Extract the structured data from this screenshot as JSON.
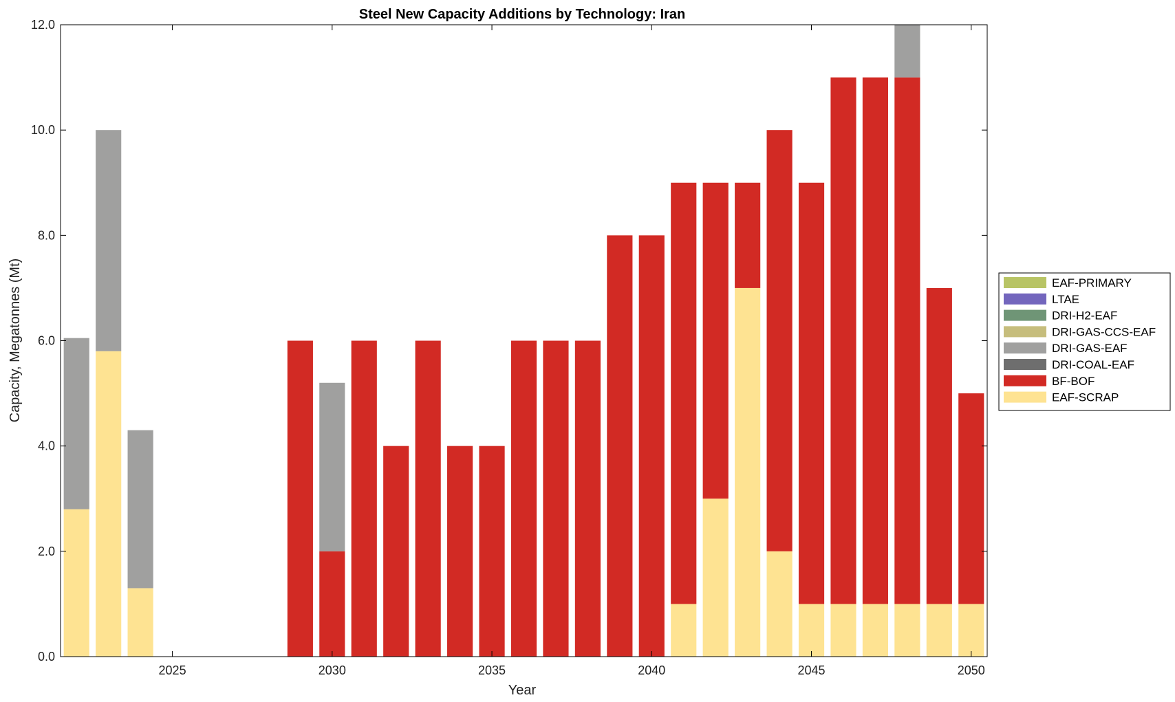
{
  "chart_data": {
    "type": "bar",
    "stacked": true,
    "title": "Steel New Capacity Additions by Technology: Iran",
    "xlabel": "Year",
    "ylabel": "Capacity, Megatonnes (Mt)",
    "xlim": [
      2022,
      2051
    ],
    "ylim": [
      0,
      12
    ],
    "xticks": [
      2025,
      2030,
      2035,
      2040,
      2045,
      2050
    ],
    "yticks": [
      "0.0",
      "2.0",
      "4.0",
      "6.0",
      "8.0",
      "10.0",
      "12.0"
    ],
    "legend_position": "right",
    "x": [
      2022,
      2023,
      2024,
      2025,
      2026,
      2027,
      2028,
      2029,
      2030,
      2031,
      2032,
      2033,
      2034,
      2035,
      2036,
      2037,
      2038,
      2039,
      2040,
      2041,
      2042,
      2043,
      2044,
      2045,
      2046,
      2047,
      2048,
      2049,
      2050
    ],
    "series": [
      {
        "name": "EAF-SCRAP",
        "color": "#fee392",
        "values": [
          2.8,
          5.8,
          1.3,
          0,
          0,
          0,
          0,
          0,
          0,
          0,
          0,
          0,
          0,
          0,
          0,
          0,
          0,
          0,
          0,
          1,
          3,
          7,
          2,
          1,
          1,
          1,
          1,
          1,
          1
        ]
      },
      {
        "name": "BF-BOF",
        "color": "#d22a24",
        "values": [
          0,
          0,
          0,
          0,
          0,
          0,
          0,
          6,
          2,
          6,
          4,
          6,
          4,
          4,
          6,
          6,
          6,
          8,
          8,
          8,
          6,
          2,
          8,
          8,
          10,
          10,
          10,
          6,
          4
        ]
      },
      {
        "name": "DRI-COAL-EAF",
        "color": "#6e6e6e",
        "values": [
          0,
          0,
          0,
          0,
          0,
          0,
          0,
          0,
          0,
          0,
          0,
          0,
          0,
          0,
          0,
          0,
          0,
          0,
          0,
          0,
          0,
          0,
          0,
          0,
          0,
          0,
          0,
          0,
          0
        ]
      },
      {
        "name": "DRI-GAS-EAF",
        "color": "#a0a09f",
        "values": [
          3.25,
          4.2,
          3.0,
          0,
          0,
          0,
          0,
          0,
          3.2,
          0,
          0,
          0,
          0,
          0,
          0,
          0,
          0,
          0,
          0,
          0,
          0,
          0,
          0,
          0,
          0,
          0,
          1.0,
          0,
          0
        ]
      },
      {
        "name": "DRI-GAS-CCS-EAF",
        "color": "#c6bd7c",
        "values": [
          0,
          0,
          0,
          0,
          0,
          0,
          0,
          0,
          0,
          0,
          0,
          0,
          0,
          0,
          0,
          0,
          0,
          0,
          0,
          0,
          0,
          0,
          0,
          0,
          0,
          0,
          0,
          0,
          0
        ]
      },
      {
        "name": "DRI-H2-EAF",
        "color": "#6f9576",
        "values": [
          0,
          0,
          0,
          0,
          0,
          0,
          0,
          0,
          0,
          0,
          0,
          0,
          0,
          0,
          0,
          0,
          0,
          0,
          0,
          0,
          0,
          0,
          0,
          0,
          0,
          0,
          0,
          0,
          0
        ]
      },
      {
        "name": "LTAE",
        "color": "#7366bd",
        "values": [
          0,
          0,
          0,
          0,
          0,
          0,
          0,
          0,
          0,
          0,
          0,
          0,
          0,
          0,
          0,
          0,
          0,
          0,
          0,
          0,
          0,
          0,
          0,
          0,
          0,
          0,
          0,
          0,
          0
        ]
      },
      {
        "name": "EAF-PRIMARY",
        "color": "#b8c465",
        "values": [
          0,
          0,
          0,
          0,
          0,
          0,
          0,
          0,
          0,
          0,
          0,
          0,
          0,
          0,
          0,
          0,
          0,
          0,
          0,
          0,
          0,
          0,
          0,
          0,
          0,
          0,
          0,
          0,
          0
        ]
      }
    ],
    "legend_order": [
      "EAF-PRIMARY",
      "LTAE",
      "DRI-H2-EAF",
      "DRI-GAS-CCS-EAF",
      "DRI-GAS-EAF",
      "DRI-COAL-EAF",
      "BF-BOF",
      "EAF-SCRAP"
    ]
  }
}
